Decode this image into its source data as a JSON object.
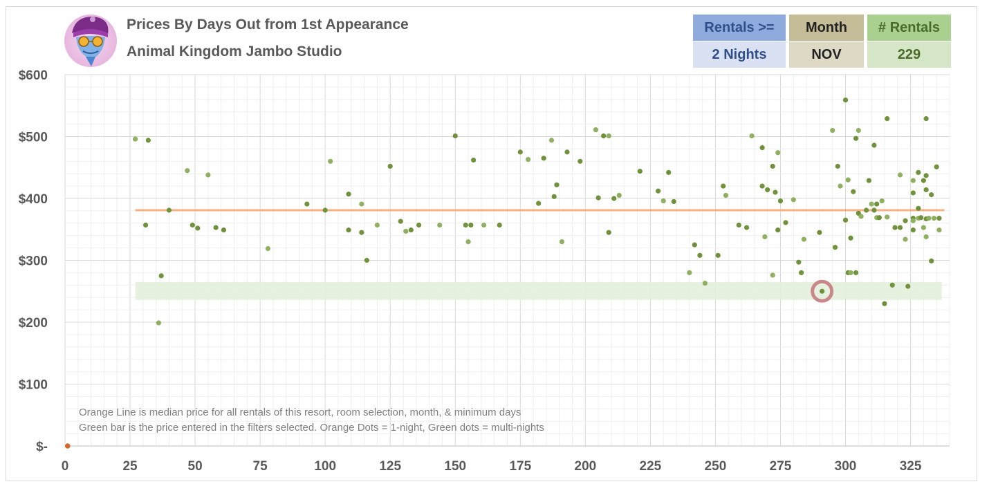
{
  "header": {
    "title": "Prices By Days Out from 1st Appearance",
    "subtitle": "Animal Kingdom Jambo Studio"
  },
  "filters": {
    "rentals_label": "Rentals >=",
    "rentals_value": "2 Nights",
    "month_label": "Month",
    "month_value": "NOV",
    "count_label": "# Rentals",
    "count_value": "229"
  },
  "notes": {
    "line1": "Orange Line is median price for all rentals of this resort, room selection, month, & minimum days",
    "line2": "Green bar is the price entered in the filters selected. Orange Dots = 1-night, Green dots = multi-nights"
  },
  "colors": {
    "median": "#f4b183",
    "price_band": "#e2efda",
    "dot": "#70923c",
    "dot_light": "#8fb060",
    "highlight_ring": "#c9878a",
    "orange_dot": "#d26a2b",
    "rentals_header": "#8faadc",
    "rentals_value": "#d9e1f2",
    "month_header": "#c4bd97",
    "month_value": "#ddd9c4",
    "count_header": "#a9d08e",
    "count_value": "#d4e6c6"
  },
  "chart_data": {
    "type": "scatter",
    "title": "Prices By Days Out from 1st Appearance",
    "xlabel": "",
    "ylabel": "",
    "xlim": [
      0,
      340
    ],
    "ylim": [
      0,
      600
    ],
    "x_ticks": [
      0,
      25,
      50,
      75,
      100,
      125,
      150,
      175,
      200,
      225,
      250,
      275,
      300,
      325
    ],
    "x_tick_labels": [
      "0",
      "25",
      "50",
      "75",
      "100",
      "125",
      "150",
      "175",
      "200",
      "225",
      "250",
      "275",
      "300",
      "325"
    ],
    "y_ticks": [
      0,
      100,
      200,
      300,
      400,
      500,
      600
    ],
    "y_tick_labels": [
      "$-",
      "$100",
      "$200",
      "$300",
      "$400",
      "$500",
      "$600"
    ],
    "grid": true,
    "median_line": {
      "value": 381,
      "x_start": 27,
      "x_end": 338
    },
    "price_band": {
      "low": 236,
      "high": 265,
      "x_start": 27,
      "x_end": 337
    },
    "highlight": {
      "x": 291,
      "y": 250
    },
    "one_night_points": [
      [
        1,
        0
      ]
    ],
    "multi_night_points": [
      [
        27,
        496
      ],
      [
        31,
        357
      ],
      [
        32,
        494
      ],
      [
        36,
        199
      ],
      [
        37,
        275
      ],
      [
        40,
        381
      ],
      [
        47,
        445
      ],
      [
        49,
        357
      ],
      [
        51,
        352
      ],
      [
        55,
        438
      ],
      [
        58,
        353
      ],
      [
        61,
        349
      ],
      [
        78,
        319
      ],
      [
        93,
        391
      ],
      [
        100,
        381
      ],
      [
        102,
        460
      ],
      [
        109,
        407
      ],
      [
        109,
        349
      ],
      [
        114,
        391
      ],
      [
        114,
        345
      ],
      [
        116,
        300
      ],
      [
        120,
        357
      ],
      [
        125,
        452
      ],
      [
        129,
        363
      ],
      [
        131,
        347
      ],
      [
        133,
        349
      ],
      [
        136,
        357
      ],
      [
        144,
        357
      ],
      [
        150,
        501
      ],
      [
        154,
        357
      ],
      [
        155,
        330
      ],
      [
        156,
        357
      ],
      [
        157,
        462
      ],
      [
        161,
        357
      ],
      [
        167,
        357
      ],
      [
        175,
        475
      ],
      [
        178,
        463
      ],
      [
        182,
        392
      ],
      [
        184,
        465
      ],
      [
        187,
        494
      ],
      [
        188,
        403
      ],
      [
        189,
        422
      ],
      [
        191,
        330
      ],
      [
        193,
        475
      ],
      [
        198,
        460
      ],
      [
        204,
        511
      ],
      [
        205,
        401
      ],
      [
        207,
        501
      ],
      [
        209,
        501
      ],
      [
        209,
        345
      ],
      [
        211,
        400
      ],
      [
        213,
        405
      ],
      [
        221,
        444
      ],
      [
        228,
        412
      ],
      [
        230,
        396
      ],
      [
        232,
        442
      ],
      [
        234,
        395
      ],
      [
        240,
        280
      ],
      [
        242,
        325
      ],
      [
        244,
        308
      ],
      [
        246,
        263
      ],
      [
        251,
        308
      ],
      [
        253,
        420
      ],
      [
        254,
        405
      ],
      [
        259,
        357
      ],
      [
        262,
        353
      ],
      [
        264,
        501
      ],
      [
        268,
        482
      ],
      [
        268,
        420
      ],
      [
        269,
        338
      ],
      [
        270,
        414
      ],
      [
        272,
        452
      ],
      [
        272,
        276
      ],
      [
        273,
        410
      ],
      [
        274,
        349
      ],
      [
        274,
        474
      ],
      [
        275,
        396
      ],
      [
        277,
        361
      ],
      [
        280,
        398
      ],
      [
        282,
        297
      ],
      [
        283,
        280
      ],
      [
        284,
        334
      ],
      [
        290,
        345
      ],
      [
        291,
        250
      ],
      [
        295,
        510
      ],
      [
        296,
        321
      ],
      [
        297,
        452
      ],
      [
        298,
        420
      ],
      [
        300,
        365
      ],
      [
        300,
        559
      ],
      [
        301,
        430
      ],
      [
        301,
        280
      ],
      [
        302,
        336
      ],
      [
        302,
        280
      ],
      [
        303,
        411
      ],
      [
        304,
        497
      ],
      [
        305,
        510
      ],
      [
        304,
        280
      ],
      [
        305,
        376
      ],
      [
        306,
        371
      ],
      [
        308,
        381
      ],
      [
        309,
        429
      ],
      [
        310,
        391
      ],
      [
        311,
        486
      ],
      [
        311,
        381
      ],
      [
        312,
        369
      ],
      [
        312,
        391
      ],
      [
        313,
        369
      ],
      [
        314,
        396
      ],
      [
        315,
        230
      ],
      [
        316,
        529
      ],
      [
        316,
        370
      ],
      [
        318,
        260
      ],
      [
        319,
        353
      ],
      [
        321,
        438
      ],
      [
        321,
        353
      ],
      [
        323,
        364
      ],
      [
        323,
        334
      ],
      [
        324,
        258
      ],
      [
        326,
        409
      ],
      [
        326,
        429
      ],
      [
        326,
        368
      ],
      [
        326,
        349
      ],
      [
        326,
        364
      ],
      [
        328,
        384
      ],
      [
        328,
        442
      ],
      [
        328,
        368
      ],
      [
        329,
        369
      ],
      [
        330,
        429
      ],
      [
        330,
        353
      ],
      [
        331,
        367
      ],
      [
        331,
        414
      ],
      [
        331,
        338
      ],
      [
        331,
        437
      ],
      [
        331,
        529
      ],
      [
        332,
        368
      ],
      [
        333,
        406
      ],
      [
        333,
        299
      ],
      [
        334,
        368
      ],
      [
        335,
        451
      ],
      [
        336,
        368
      ],
      [
        336,
        349
      ]
    ]
  }
}
